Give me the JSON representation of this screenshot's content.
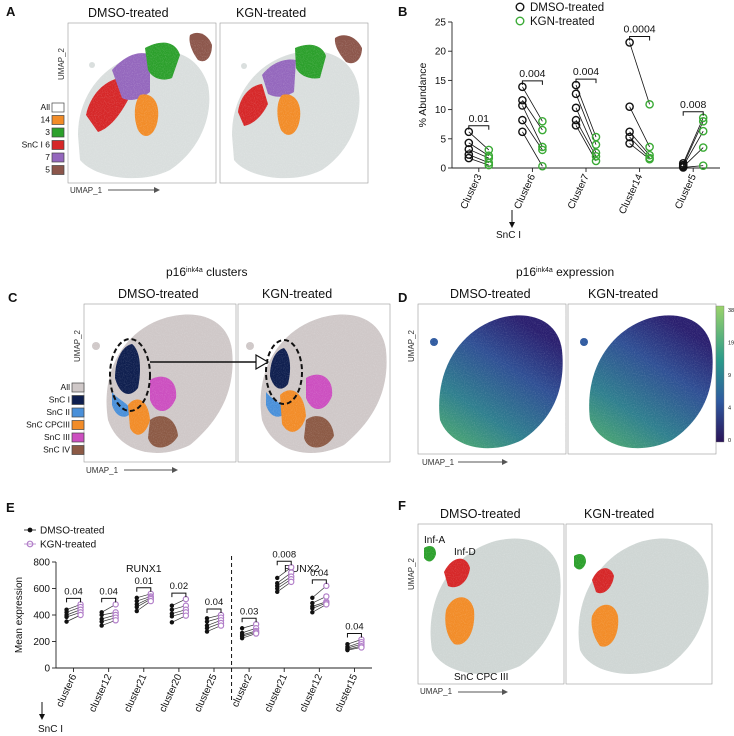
{
  "panels": {
    "A": {
      "label": "A",
      "titles": [
        "DMSO-treated",
        "KGN-treated"
      ],
      "axis_x": "UMAP_1",
      "axis_y": "UMAP_2",
      "legend": [
        {
          "label": "All",
          "color": "#ffffff"
        },
        {
          "label": "14",
          "color": "#f28c28"
        },
        {
          "label": "3",
          "color": "#2ca02c"
        },
        {
          "label": "SnC I 6",
          "color": "#d62728"
        },
        {
          "label": "7",
          "color": "#9467bd"
        },
        {
          "label": "5",
          "color": "#8c564b"
        }
      ]
    },
    "B": {
      "label": "B",
      "sublabel": "SnC I"
    },
    "C": {
      "label": "C",
      "heading_pre": "p16",
      "heading_sup": "ink4a",
      "heading_post": " clusters",
      "titles": [
        "DMSO-treated",
        "KGN-treated"
      ],
      "axis_x": "UMAP_1",
      "axis_y": "UMAP_2",
      "legend": [
        {
          "label": "All",
          "color": "#cfc8c8"
        },
        {
          "label": "SnC I",
          "color": "#0f1f4f"
        },
        {
          "label": "SnC II",
          "color": "#4a90d9"
        },
        {
          "label": "SnC CPCIII",
          "color": "#f28c28"
        },
        {
          "label": "SnC III",
          "color": "#cc4fc0"
        },
        {
          "label": "SnC IV",
          "color": "#8c5a45"
        }
      ]
    },
    "D": {
      "label": "D",
      "heading_pre": "p16",
      "heading_sup": "ink4a",
      "heading_post": " expression",
      "titles": [
        "DMSO-treated",
        "KGN-treated"
      ],
      "axis_x": "UMAP_1",
      "axis_y": "UMAP_2",
      "colorbar_ticks": [
        "38",
        "19",
        "9",
        "4",
        "0"
      ]
    },
    "E": {
      "label": "E",
      "sublabel": "SnC I"
    },
    "F": {
      "label": "F",
      "titles": [
        "DMSO-treated",
        "KGN-treated"
      ],
      "axis_x": "UMAP_1",
      "axis_y": "UMAP_2",
      "annotations": [
        "Inf-A",
        "Inf-D",
        "SnC CPC III"
      ],
      "colors": {
        "inf_a": "#2ca02c",
        "inf_d": "#d62728",
        "snc": "#f28c28",
        "all": "#cfd6d4"
      }
    }
  },
  "chart_data": [
    {
      "type": "scatter",
      "title": "",
      "xlabel": "",
      "ylabel": "% Abundance",
      "ylim": [
        0,
        25
      ],
      "yticks": [
        0,
        5,
        10,
        15,
        20,
        25
      ],
      "categories": [
        "Cluster3",
        "Cluster6",
        "Cluster7",
        "Cluster14",
        "Cluster5"
      ],
      "legend": [
        "DMSO-treated",
        "KGN-treated"
      ],
      "colors": {
        "DMSO-treated": "#111111",
        "KGN-treated": "#3aaa35"
      },
      "pvalues": [
        "0.01",
        "0.004",
        "0.004",
        "0.0004",
        "0.008"
      ],
      "series": [
        {
          "name": "DMSO-treated",
          "values": [
            [
              6.2,
              4.3,
              3.2,
              2.3,
              1.7
            ],
            [
              13.9,
              11.6,
              10.7,
              8.2,
              6.2
            ],
            [
              14.2,
              12.7,
              10.3,
              8.2,
              7.3
            ],
            [
              21.5,
              10.5,
              6.2,
              5.3,
              4.2
            ],
            [
              0.8,
              0.5,
              0.3,
              0.2,
              0.1
            ]
          ]
        },
        {
          "name": "KGN-treated",
          "values": [
            [
              3.1,
              2.1,
              1.7,
              0.9,
              0.5
            ],
            [
              8.0,
              6.5,
              3.6,
              3.1,
              0.3
            ],
            [
              5.3,
              4.0,
              2.6,
              2.0,
              1.2
            ],
            [
              10.9,
              3.6,
              2.2,
              1.7,
              1.5
            ],
            [
              8.6,
              8.0,
              6.3,
              3.5,
              0.4
            ]
          ]
        }
      ]
    },
    {
      "type": "scatter",
      "title": "",
      "xlabel": "",
      "ylabel": "Mean expression",
      "ylim": [
        0,
        800
      ],
      "yticks": [
        0,
        200,
        400,
        600,
        800
      ],
      "groups": [
        "RUNX1",
        "RUNX2"
      ],
      "categories": [
        "cluster6",
        "cluster12",
        "cluster21",
        "cluster20",
        "cluster25",
        "cluster2",
        "cluster21",
        "cluster12",
        "cluster15"
      ],
      "legend": [
        "DMSO-treated",
        "KGN-treated"
      ],
      "colors": {
        "DMSO-treated": "#111111",
        "KGN-treated": "#b27fc9"
      },
      "pvalues": [
        "0.04",
        "0.04",
        "0.01",
        "0.02",
        "0.04",
        "0.03",
        "0.008",
        "0.04",
        "0.04"
      ],
      "series": [
        {
          "name": "DMSO-treated",
          "values": [
            [
              440,
              420,
              400,
              385,
              350
            ],
            [
              420,
              400,
              370,
              350,
              320
            ],
            [
              530,
              505,
              480,
              460,
              430
            ],
            [
              470,
              440,
              410,
              390,
              345
            ],
            [
              375,
              350,
              320,
              300,
              275
            ]
          ],
          "values2": [
            [
              300,
              265,
              250,
              240,
              225
            ],
            [
              680,
              640,
              620,
              600,
              575
            ],
            [
              530,
              490,
              465,
              450,
              420
            ],
            [
              180,
              160,
              150,
              140,
              135
            ]
          ]
        },
        {
          "name": "KGN-treated",
          "values": [
            [
              480,
              460,
              440,
              420,
              400
            ],
            [
              480,
              420,
              400,
              380,
              360
            ],
            [
              560,
              540,
              530,
              520,
              505
            ],
            [
              520,
              470,
              440,
              420,
              395
            ],
            [
              400,
              380,
              360,
              340,
              320
            ]
          ],
          "values2": [
            [
              330,
              300,
              280,
              270,
              260
            ],
            [
              760,
              720,
              690,
              670,
              650
            ],
            [
              620,
              540,
              500,
              490,
              480
            ],
            [
              215,
              195,
              180,
              165,
              155
            ]
          ]
        }
      ]
    }
  ]
}
